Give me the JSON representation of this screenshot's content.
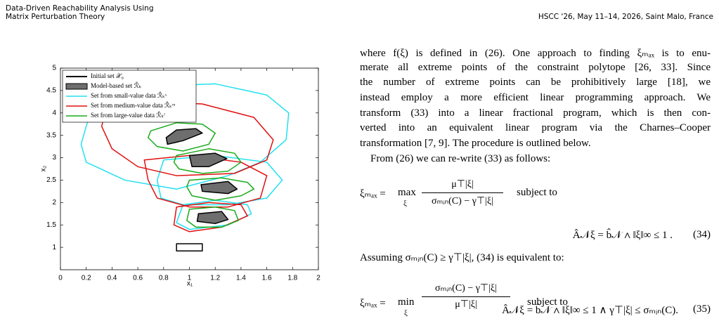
{
  "header": {
    "title_lines": [
      "Data-Driven Reachability Analysis Using",
      "Matrix Perturbation Theory"
    ],
    "venue": "HSCC '26, May 11–14, 2026, Saint Malo, France"
  },
  "chart_data": {
    "type": "polygon",
    "xlabel": "x₁",
    "ylabel": "x₂",
    "xlim": [
      0,
      2
    ],
    "xticks": [
      0,
      0.2,
      0.4,
      0.6,
      0.8,
      1,
      1.2,
      1.4,
      1.6,
      1.8,
      2
    ],
    "ylim": [
      0.5,
      5
    ],
    "yticks": [
      1,
      1.5,
      2,
      2.5,
      3,
      3.5,
      4,
      4.5,
      5
    ],
    "legend": "upper left",
    "series": [
      {
        "name": "Initial set 𝒳₀",
        "color": "#000000",
        "polygons": [
          {
            "x": [
              0.9,
              1.1,
              1.1,
              0.9
            ],
            "y": [
              0.92,
              0.92,
              1.08,
              1.08
            ]
          }
        ]
      },
      {
        "name": "Model-based set ℛ̂ₖ",
        "color": "#000000",
        "fill": "#6e6e6e",
        "polygons": [
          {
            "x": [
              0.82,
              0.9,
              1.05,
              1.1,
              0.95,
              0.83
            ],
            "y": [
              3.45,
              3.62,
              3.65,
              3.55,
              3.38,
              3.3
            ]
          },
          {
            "x": [
              1.0,
              1.2,
              1.29,
              1.15,
              1.02
            ],
            "y": [
              3.05,
              3.1,
              2.98,
              2.8,
              2.8
            ]
          },
          {
            "x": [
              1.09,
              1.3,
              1.37,
              1.3,
              1.1
            ],
            "y": [
              2.4,
              2.47,
              2.3,
              2.2,
              2.25
            ]
          },
          {
            "x": [
              1.07,
              1.25,
              1.3,
              1.2,
              1.06
            ],
            "y": [
              1.75,
              1.8,
              1.62,
              1.53,
              1.58
            ]
          }
        ]
      },
      {
        "name": "Set from small-value data ℛ̂ₖˢ",
        "color": "#22e0f0",
        "polygons": [
          {
            "x": [
              0.35,
              0.75,
              1.2,
              1.6,
              1.77,
              1.75,
              1.55,
              1.3,
              0.9,
              0.5,
              0.2,
              0.16,
              0.22
            ],
            "y": [
              4.3,
              4.6,
              4.65,
              4.4,
              4.0,
              3.4,
              2.9,
              2.6,
              2.3,
              2.5,
              2.9,
              3.3,
              3.9
            ]
          },
          {
            "x": [
              0.8,
              1.2,
              1.6,
              1.72,
              1.6,
              1.3,
              0.95,
              0.78,
              0.75
            ],
            "y": [
              2.95,
              3.05,
              2.9,
              2.5,
              2.1,
              1.95,
              1.95,
              2.1,
              2.5
            ]
          },
          {
            "x": [
              0.95,
              1.2,
              1.45,
              1.48,
              1.3,
              1.0,
              0.9
            ],
            "y": [
              1.95,
              2.05,
              1.95,
              1.75,
              1.5,
              1.4,
              1.55
            ]
          }
        ]
      },
      {
        "name": "Set from medium-value data ℛ̂ₖᵐ",
        "color": "#e01010",
        "polygons": [
          {
            "x": [
              0.35,
              0.7,
              1.1,
              1.5,
              1.65,
              1.6,
              1.35,
              0.9,
              0.6,
              0.4,
              0.32
            ],
            "y": [
              4.1,
              4.25,
              4.2,
              3.9,
              3.4,
              2.95,
              2.65,
              2.6,
              2.8,
              3.2,
              3.7
            ]
          },
          {
            "x": [
              0.65,
              1.0,
              1.4,
              1.6,
              1.55,
              1.3,
              1.0,
              0.75,
              0.68
            ],
            "y": [
              2.95,
              3.05,
              2.9,
              2.6,
              2.1,
              1.9,
              1.9,
              2.1,
              2.5
            ]
          },
          {
            "x": [
              0.9,
              1.15,
              1.4,
              1.45,
              1.25,
              1.0,
              0.88
            ],
            "y": [
              1.9,
              2.0,
              1.95,
              1.7,
              1.45,
              1.35,
              1.5
            ]
          }
        ]
      },
      {
        "name": "Set from large-value data ℛ̂ₖˡ",
        "color": "#1aab1a",
        "polygons": [
          {
            "x": [
              0.7,
              0.9,
              1.1,
              1.2,
              1.15,
              0.95,
              0.75,
              0.68
            ],
            "y": [
              3.6,
              3.78,
              3.75,
              3.55,
              3.3,
              3.15,
              3.25,
              3.45
            ]
          },
          {
            "x": [
              0.9,
              1.15,
              1.35,
              1.4,
              1.3,
              1.1,
              0.92,
              0.88
            ],
            "y": [
              3.05,
              3.2,
              3.1,
              2.9,
              2.7,
              2.65,
              2.75,
              2.9
            ]
          },
          {
            "x": [
              1.0,
              1.25,
              1.45,
              1.5,
              1.4,
              1.2,
              1.02,
              0.98
            ],
            "y": [
              2.5,
              2.55,
              2.45,
              2.3,
              2.15,
              2.05,
              2.15,
              2.35
            ]
          },
          {
            "x": [
              1.0,
              1.2,
              1.35,
              1.38,
              1.25,
              1.05,
              0.98
            ],
            "y": [
              1.85,
              1.9,
              1.82,
              1.6,
              1.45,
              1.45,
              1.6
            ]
          }
        ]
      }
    ]
  },
  "text": {
    "lines": [
      "where f(ξ) is defined in (26). One approach to finding ξₘₐₓ is to enu-",
      "merate all extreme points of the constraint polytope [26, 33]. Since",
      "the number of extreme points can be prohibitively large [18], we",
      "instead employ a more efficient linear programming approach. We",
      "transform (33) into a linear fractional program, which is then con-",
      "verted into an equivalent linear program via the Charnes–Cooper",
      "transformation [7, 9]. The procedure is outlined below.",
      "From (26) we can re-write (33) as follows:"
    ],
    "eq34": {
      "lhs": "ξₘₐₓ =",
      "op": "max",
      "op_sub": "ξ",
      "num": "μ⊤|ξ|",
      "den": "σₘᵢₙ(C) − γ⊤|ξ|",
      "cond": "subject to",
      "constraint": "Â𝒩ξ = b̂𝒩  ∧  ‖ξ‖∞ ≤ 1 .",
      "number": "(34)"
    },
    "middle": "Assuming σₘᵢₙ(C) ≥ γ⊤|ξ|, (34) is equivalent to:",
    "eq35": {
      "lhs": "ξₘₐₓ =",
      "op": "min",
      "op_sub": "ξ",
      "num": "σₘᵢₙ(C) − γ⊤|ξ|",
      "den": "μ⊤|ξ|",
      "cond": "subject to",
      "constraint": "Â𝒩ξ = b̂𝒩  ∧  ‖ξ‖∞ ≤ 1  ∧  γ⊤|ξ| ≤ σₘᵢₙ(C).",
      "number": "(35)"
    }
  }
}
